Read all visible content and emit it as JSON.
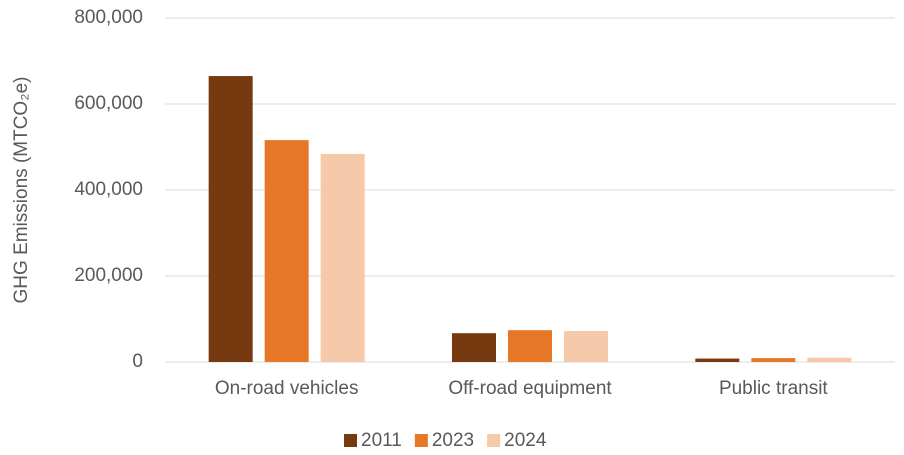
{
  "chart_data": {
    "type": "bar",
    "ylabel": "GHG Emissions (MTCO₂e)",
    "categories": [
      "On-road vehicles",
      "Off-road equipment",
      "Public transit"
    ],
    "series": [
      {
        "name": "2011",
        "color": "#77390f",
        "values": [
          665000,
          67000,
          8000
        ]
      },
      {
        "name": "2023",
        "color": "#e57726",
        "values": [
          516000,
          74000,
          9000
        ]
      },
      {
        "name": "2024",
        "color": "#f5c9a9",
        "values": [
          484000,
          72000,
          10000
        ]
      }
    ],
    "ylim": [
      0,
      800000
    ],
    "yticks": [
      0,
      {
        "value": 200000,
        "label": "200,000"
      },
      {
        "value": 400000,
        "label": "400,000"
      },
      {
        "value": 600000,
        "label": "600,000"
      },
      {
        "value": 800000,
        "label": "800,000"
      }
    ],
    "grid": true,
    "legend": "bottom"
  }
}
